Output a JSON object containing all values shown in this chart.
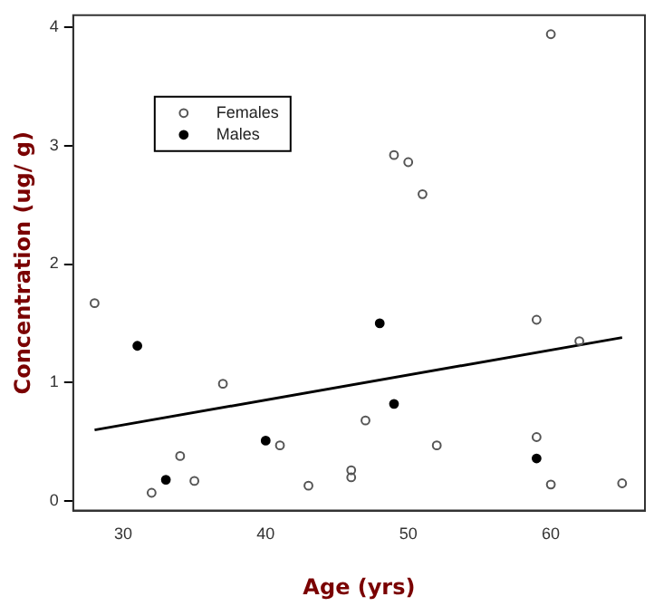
{
  "chart_data": {
    "type": "scatter",
    "xlabel": "Age (yrs)",
    "ylabel": "Concentration (ug/ g)",
    "xlim": [
      26.5,
      66.6
    ],
    "ylim": [
      -0.08,
      4.1
    ],
    "xticks": [
      30,
      40,
      50,
      60
    ],
    "yticks": [
      0,
      1,
      2,
      3,
      4
    ],
    "grid": false,
    "legend": "top left",
    "marker": "circle",
    "series": [
      {
        "name": "Females",
        "color": "#555555",
        "x": [
          28,
          32,
          34,
          35,
          37,
          41,
          43,
          46,
          46,
          47,
          49,
          50,
          51,
          52,
          59,
          59,
          60,
          60,
          62,
          65
        ],
        "values": [
          1.67,
          0.07,
          0.38,
          0.17,
          0.99,
          0.47,
          0.13,
          0.26,
          0.2,
          0.68,
          2.92,
          2.86,
          2.59,
          0.47,
          1.53,
          0.54,
          3.94,
          0.14,
          1.35,
          0.15
        ]
      },
      {
        "name": "Males",
        "color": "#000000",
        "x": [
          31,
          33,
          40,
          48,
          49,
          59
        ],
        "values": [
          1.31,
          0.18,
          0.51,
          1.5,
          0.82,
          0.36
        ]
      },
      {
        "type": "line",
        "marker": "none",
        "color": "#000000",
        "x": [
          28,
          65
        ],
        "values": [
          0.6,
          1.38
        ]
      }
    ]
  }
}
